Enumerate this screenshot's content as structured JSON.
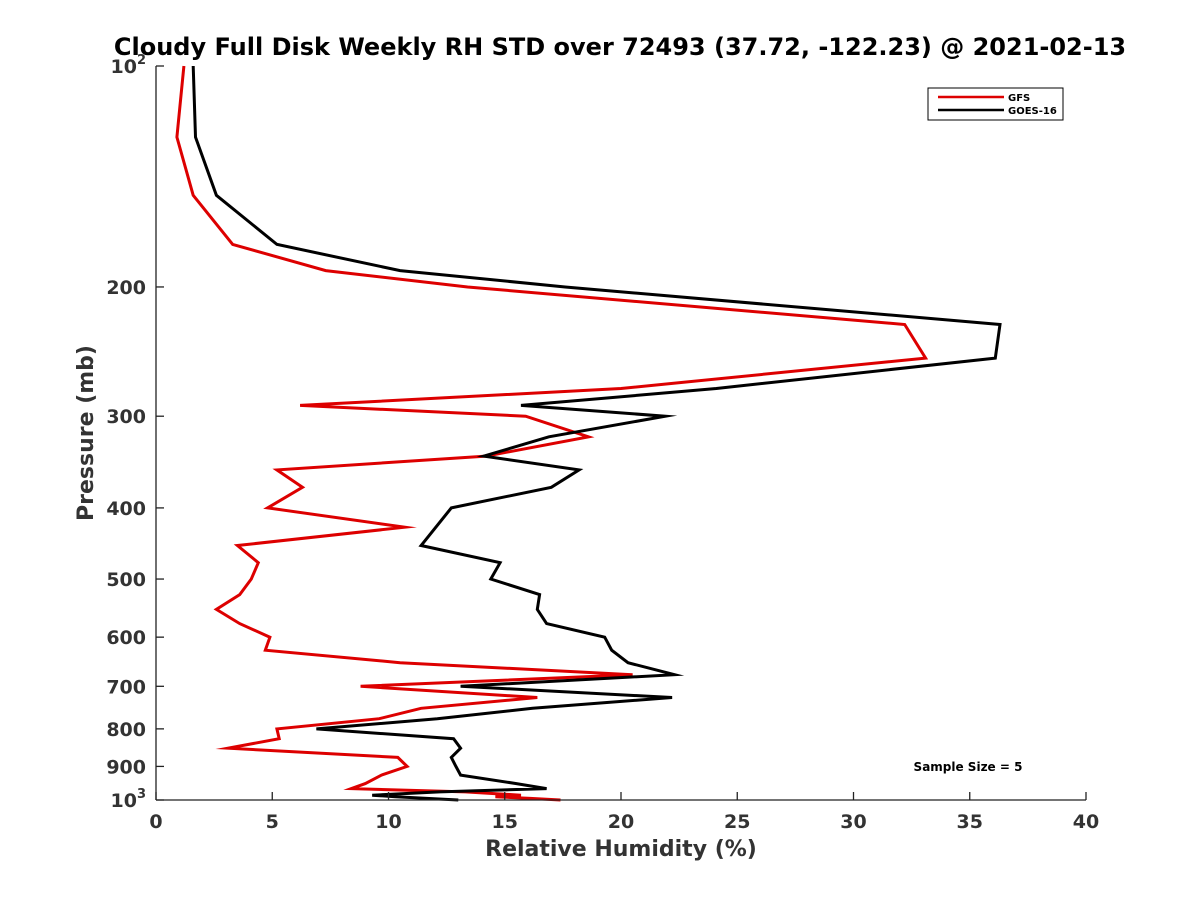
{
  "chart_data": {
    "type": "line",
    "title": "Cloudy Full Disk Weekly RH STD over 72493 (37.72, -122.23) @ 2021-02-13",
    "xlabel": "Relative Humidity (%)",
    "ylabel": "Pressure (mb)",
    "xlim": [
      0,
      40
    ],
    "ylim": [
      100,
      1000
    ],
    "y_scale": "log",
    "y_reversed": true,
    "grid": false,
    "legend_position": "top-right",
    "x_ticks": [
      0,
      5,
      10,
      15,
      20,
      25,
      30,
      35,
      40
    ],
    "y_ticks": [
      {
        "value": 100,
        "label": "10",
        "sup": "2"
      },
      {
        "value": 200,
        "label": "200"
      },
      {
        "value": 300,
        "label": "300"
      },
      {
        "value": 400,
        "label": "400"
      },
      {
        "value": 500,
        "label": "500"
      },
      {
        "value": 600,
        "label": "600"
      },
      {
        "value": 700,
        "label": "700"
      },
      {
        "value": 800,
        "label": "800"
      },
      {
        "value": 900,
        "label": "900"
      },
      {
        "value": 1000,
        "label": "10",
        "sup": "3"
      }
    ],
    "annotation": "Sample Size = 5",
    "series": [
      {
        "name": "GFS",
        "color": "#dd0000",
        "points": [
          [
            1.2,
            100
          ],
          [
            0.9,
            125
          ],
          [
            1.6,
            150
          ],
          [
            3.3,
            175
          ],
          [
            7.3,
            190
          ],
          [
            13.4,
            200
          ],
          [
            32.2,
            225
          ],
          [
            33.1,
            250
          ],
          [
            20.0,
            275
          ],
          [
            6.2,
            290
          ],
          [
            15.9,
            300
          ],
          [
            18.6,
            320
          ],
          [
            14.2,
            340
          ],
          [
            5.2,
            355
          ],
          [
            6.3,
            375
          ],
          [
            4.8,
            400
          ],
          [
            10.7,
            425
          ],
          [
            3.5,
            450
          ],
          [
            4.4,
            475
          ],
          [
            4.1,
            500
          ],
          [
            3.6,
            525
          ],
          [
            2.6,
            550
          ],
          [
            3.6,
            575
          ],
          [
            4.9,
            600
          ],
          [
            4.7,
            625
          ],
          [
            10.5,
            650
          ],
          [
            20.5,
            675
          ],
          [
            8.8,
            700
          ],
          [
            16.4,
            725
          ],
          [
            11.4,
            750
          ],
          [
            9.6,
            775
          ],
          [
            5.2,
            800
          ],
          [
            5.3,
            825
          ],
          [
            3.1,
            850
          ],
          [
            10.4,
            875
          ],
          [
            10.8,
            900
          ],
          [
            9.7,
            925
          ],
          [
            9.0,
            950
          ],
          [
            8.4,
            965
          ],
          [
            13.3,
            975
          ],
          [
            15.7,
            985
          ],
          [
            14.6,
            990
          ],
          [
            16.1,
            995
          ],
          [
            17.4,
            1000
          ]
        ]
      },
      {
        "name": "GOES-16",
        "color": "#000000",
        "points": [
          [
            1.6,
            100
          ],
          [
            1.7,
            125
          ],
          [
            2.6,
            150
          ],
          [
            5.2,
            175
          ],
          [
            10.5,
            190
          ],
          [
            17.6,
            200
          ],
          [
            36.3,
            225
          ],
          [
            36.1,
            250
          ],
          [
            24.1,
            275
          ],
          [
            15.7,
            290
          ],
          [
            21.9,
            300
          ],
          [
            16.9,
            320
          ],
          [
            14.1,
            340
          ],
          [
            18.2,
            355
          ],
          [
            17.0,
            375
          ],
          [
            12.7,
            400
          ],
          [
            11.4,
            450
          ],
          [
            14.8,
            475
          ],
          [
            14.4,
            500
          ],
          [
            16.5,
            525
          ],
          [
            16.4,
            550
          ],
          [
            16.8,
            575
          ],
          [
            19.3,
            600
          ],
          [
            19.6,
            625
          ],
          [
            20.3,
            650
          ],
          [
            22.3,
            675
          ],
          [
            13.1,
            700
          ],
          [
            22.2,
            725
          ],
          [
            16.2,
            750
          ],
          [
            12.1,
            775
          ],
          [
            6.9,
            800
          ],
          [
            12.8,
            825
          ],
          [
            13.1,
            850
          ],
          [
            12.7,
            875
          ],
          [
            12.9,
            900
          ],
          [
            13.1,
            925
          ],
          [
            15.5,
            950
          ],
          [
            16.8,
            965
          ],
          [
            12.2,
            975
          ],
          [
            9.3,
            985
          ],
          [
            10.3,
            990
          ],
          [
            13.0,
            1000
          ]
        ]
      }
    ]
  }
}
